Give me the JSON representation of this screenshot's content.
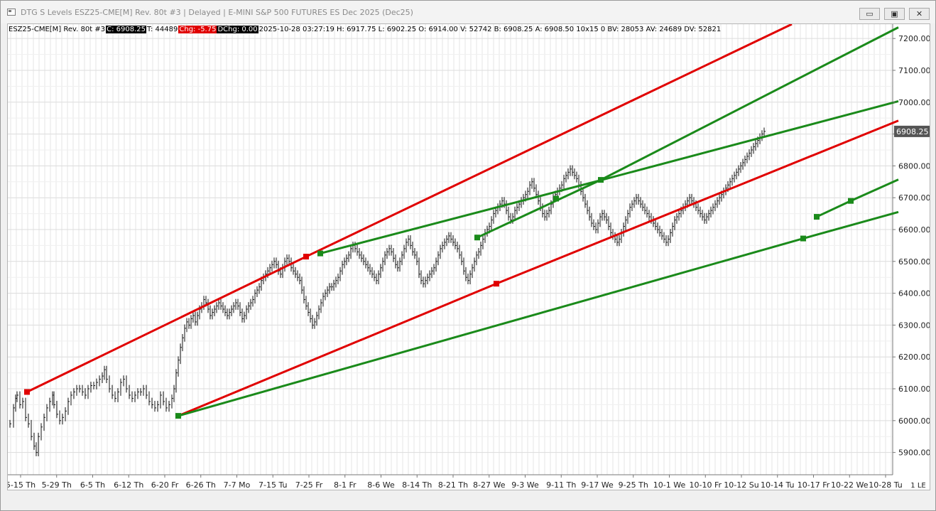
{
  "window": {
    "title": "DTG S Levels ESZ25-CME[M]  Rev. 80t #3 | Delayed | E-MINI S&P 500 FUTURES ES Dec 2025 (Dec25)",
    "min_label": "▭",
    "max_label": "▣",
    "close_label": "✕"
  },
  "infobar": {
    "symbol": "ESZ25-CME[M]  Rev. 80t #3",
    "close": "C: 6908.25",
    "ticks": "T: 44489",
    "chg": "Chg: -5.75",
    "dchg": "DChg: 0.00",
    "details": "2025-10-28 03:27:19 H: 6917.75 L: 6902.25 O: 6914.00 V: 52742 B: 6908.25 A: 6908.50 10x15 0 BV: 28053 AV: 24689 DV: 52821"
  },
  "status_box": "1 LE",
  "chart_data": {
    "type": "line",
    "ylim": [
      5830,
      7245
    ],
    "y_ticks": [
      "5900.00",
      "6000.00",
      "6100.00",
      "6200.00",
      "6300.00",
      "6400.00",
      "6500.00",
      "6600.00",
      "6700.00",
      "6800.00",
      "6900.00",
      "7000.00",
      "7100.00",
      "7200.00"
    ],
    "last_price_label": "6908.25",
    "last_price": 6908.25,
    "x_ticks": [
      "5-15 Th",
      "5-29 Th",
      "6-5 Th",
      "6-12 Th",
      "6-20 Fr",
      "6-26 Th",
      "7-7 Mo",
      "7-15 Tu",
      "7-25 Fr",
      "8-1 Fr",
      "8-6 We",
      "8-14 Th",
      "8-21 Th",
      "8-27 We",
      "9-3 We",
      "9-11 Th",
      "9-17 We",
      "9-25 Th",
      "10-1 We",
      "10-10 Fr",
      "10-12 Su",
      "10-14 Tu",
      "10-17 Fr",
      "10-22 We",
      "10-28 Tu"
    ],
    "price_series": [
      [
        0,
        5990
      ],
      [
        5,
        6040
      ],
      [
        8,
        6070
      ],
      [
        10,
        6080
      ],
      [
        14,
        6050
      ],
      [
        18,
        6060
      ],
      [
        22,
        6010
      ],
      [
        26,
        5990
      ],
      [
        30,
        5950
      ],
      [
        34,
        5920
      ],
      [
        37,
        5900
      ],
      [
        40,
        5950
      ],
      [
        44,
        5980
      ],
      [
        48,
        6010
      ],
      [
        52,
        6040
      ],
      [
        56,
        6060
      ],
      [
        60,
        6080
      ],
      [
        62,
        6050
      ],
      [
        66,
        6020
      ],
      [
        70,
        6000
      ],
      [
        74,
        6010
      ],
      [
        78,
        6030
      ],
      [
        82,
        6060
      ],
      [
        86,
        6080
      ],
      [
        90,
        6090
      ],
      [
        94,
        6100
      ],
      [
        98,
        6100
      ],
      [
        102,
        6090
      ],
      [
        106,
        6080
      ],
      [
        110,
        6100
      ],
      [
        114,
        6110
      ],
      [
        118,
        6110
      ],
      [
        122,
        6120
      ],
      [
        126,
        6130
      ],
      [
        130,
        6140
      ],
      [
        133,
        6160
      ],
      [
        136,
        6130
      ],
      [
        140,
        6100
      ],
      [
        144,
        6080
      ],
      [
        148,
        6070
      ],
      [
        152,
        6090
      ],
      [
        156,
        6120
      ],
      [
        160,
        6130
      ],
      [
        164,
        6100
      ],
      [
        168,
        6080
      ],
      [
        172,
        6070
      ],
      [
        176,
        6080
      ],
      [
        180,
        6090
      ],
      [
        184,
        6090
      ],
      [
        188,
        6100
      ],
      [
        192,
        6080
      ],
      [
        196,
        6060
      ],
      [
        200,
        6050
      ],
      [
        204,
        6040
      ],
      [
        208,
        6050
      ],
      [
        212,
        6080
      ],
      [
        216,
        6060
      ],
      [
        220,
        6040
      ],
      [
        224,
        6050
      ],
      [
        228,
        6070
      ],
      [
        231,
        6100
      ],
      [
        234,
        6150
      ],
      [
        237,
        6190
      ],
      [
        240,
        6230
      ],
      [
        243,
        6260
      ],
      [
        246,
        6290
      ],
      [
        249,
        6310
      ],
      [
        252,
        6300
      ],
      [
        255,
        6320
      ],
      [
        258,
        6330
      ],
      [
        261,
        6310
      ],
      [
        264,
        6330
      ],
      [
        267,
        6350
      ],
      [
        270,
        6360
      ],
      [
        273,
        6380
      ],
      [
        276,
        6370
      ],
      [
        279,
        6350
      ],
      [
        282,
        6330
      ],
      [
        285,
        6340
      ],
      [
        288,
        6350
      ],
      [
        291,
        6360
      ],
      [
        294,
        6370
      ],
      [
        297,
        6360
      ],
      [
        300,
        6350
      ],
      [
        303,
        6340
      ],
      [
        306,
        6330
      ],
      [
        309,
        6340
      ],
      [
        312,
        6350
      ],
      [
        315,
        6360
      ],
      [
        318,
        6370
      ],
      [
        321,
        6360
      ],
      [
        324,
        6340
      ],
      [
        327,
        6320
      ],
      [
        330,
        6330
      ],
      [
        333,
        6350
      ],
      [
        336,
        6360
      ],
      [
        339,
        6370
      ],
      [
        342,
        6380
      ],
      [
        345,
        6400
      ],
      [
        348,
        6410
      ],
      [
        351,
        6420
      ],
      [
        354,
        6440
      ],
      [
        357,
        6450
      ],
      [
        360,
        6460
      ],
      [
        363,
        6470
      ],
      [
        366,
        6480
      ],
      [
        369,
        6490
      ],
      [
        372,
        6500
      ],
      [
        375,
        6490
      ],
      [
        378,
        6470
      ],
      [
        381,
        6460
      ],
      [
        384,
        6480
      ],
      [
        387,
        6500
      ],
      [
        390,
        6510
      ],
      [
        393,
        6500
      ],
      [
        396,
        6480
      ],
      [
        399,
        6470
      ],
      [
        402,
        6460
      ],
      [
        405,
        6450
      ],
      [
        408,
        6440
      ],
      [
        411,
        6410
      ],
      [
        414,
        6380
      ],
      [
        417,
        6360
      ],
      [
        420,
        6340
      ],
      [
        423,
        6320
      ],
      [
        426,
        6300
      ],
      [
        429,
        6310
      ],
      [
        432,
        6330
      ],
      [
        435,
        6350
      ],
      [
        438,
        6370
      ],
      [
        441,
        6390
      ],
      [
        444,
        6400
      ],
      [
        447,
        6410
      ],
      [
        450,
        6420
      ],
      [
        453,
        6420
      ],
      [
        456,
        6430
      ],
      [
        459,
        6440
      ],
      [
        462,
        6450
      ],
      [
        465,
        6470
      ],
      [
        468,
        6490
      ],
      [
        471,
        6500
      ],
      [
        474,
        6510
      ],
      [
        477,
        6520
      ],
      [
        480,
        6540
      ],
      [
        483,
        6550
      ],
      [
        486,
        6540
      ],
      [
        489,
        6530
      ],
      [
        492,
        6520
      ],
      [
        495,
        6510
      ],
      [
        498,
        6500
      ],
      [
        501,
        6490
      ],
      [
        504,
        6480
      ],
      [
        507,
        6470
      ],
      [
        510,
        6460
      ],
      [
        513,
        6450
      ],
      [
        516,
        6440
      ],
      [
        519,
        6460
      ],
      [
        522,
        6480
      ],
      [
        525,
        6500
      ],
      [
        528,
        6520
      ],
      [
        531,
        6530
      ],
      [
        534,
        6540
      ],
      [
        537,
        6530
      ],
      [
        540,
        6510
      ],
      [
        543,
        6490
      ],
      [
        546,
        6480
      ],
      [
        549,
        6500
      ],
      [
        552,
        6520
      ],
      [
        555,
        6540
      ],
      [
        558,
        6560
      ],
      [
        561,
        6570
      ],
      [
        564,
        6550
      ],
      [
        567,
        6530
      ],
      [
        570,
        6520
      ],
      [
        573,
        6500
      ],
      [
        576,
        6460
      ],
      [
        579,
        6440
      ],
      [
        582,
        6430
      ],
      [
        585,
        6440
      ],
      [
        588,
        6450
      ],
      [
        591,
        6460
      ],
      [
        594,
        6470
      ],
      [
        597,
        6480
      ],
      [
        600,
        6500
      ],
      [
        603,
        6520
      ],
      [
        606,
        6540
      ],
      [
        609,
        6550
      ],
      [
        612,
        6560
      ],
      [
        615,
        6570
      ],
      [
        618,
        6580
      ],
      [
        621,
        6570
      ],
      [
        624,
        6560
      ],
      [
        627,
        6550
      ],
      [
        630,
        6540
      ],
      [
        633,
        6520
      ],
      [
        636,
        6500
      ],
      [
        639,
        6470
      ],
      [
        642,
        6450
      ],
      [
        645,
        6440
      ],
      [
        648,
        6460
      ],
      [
        651,
        6480
      ],
      [
        654,
        6500
      ],
      [
        657,
        6520
      ],
      [
        660,
        6530
      ],
      [
        663,
        6550
      ],
      [
        666,
        6570
      ],
      [
        669,
        6590
      ],
      [
        672,
        6600
      ],
      [
        675,
        6610
      ],
      [
        678,
        6630
      ],
      [
        681,
        6650
      ],
      [
        684,
        6660
      ],
      [
        687,
        6670
      ],
      [
        690,
        6680
      ],
      [
        693,
        6690
      ],
      [
        696,
        6680
      ],
      [
        699,
        6660
      ],
      [
        702,
        6640
      ],
      [
        705,
        6630
      ],
      [
        708,
        6640
      ],
      [
        711,
        6660
      ],
      [
        714,
        6670
      ],
      [
        717,
        6680
      ],
      [
        720,
        6690
      ],
      [
        723,
        6700
      ],
      [
        726,
        6710
      ],
      [
        729,
        6720
      ],
      [
        732,
        6740
      ],
      [
        735,
        6750
      ],
      [
        738,
        6730
      ],
      [
        741,
        6710
      ],
      [
        744,
        6690
      ],
      [
        747,
        6670
      ],
      [
        750,
        6650
      ],
      [
        753,
        6640
      ],
      [
        756,
        6650
      ],
      [
        759,
        6660
      ],
      [
        762,
        6680
      ],
      [
        765,
        6700
      ],
      [
        768,
        6710
      ],
      [
        771,
        6720
      ],
      [
        774,
        6730
      ],
      [
        777,
        6740
      ],
      [
        780,
        6760
      ],
      [
        783,
        6770
      ],
      [
        786,
        6780
      ],
      [
        789,
        6790
      ],
      [
        792,
        6780
      ],
      [
        795,
        6770
      ],
      [
        798,
        6760
      ],
      [
        801,
        6740
      ],
      [
        804,
        6720
      ],
      [
        807,
        6700
      ],
      [
        810,
        6680
      ],
      [
        813,
        6660
      ],
      [
        816,
        6640
      ],
      [
        819,
        6620
      ],
      [
        822,
        6610
      ],
      [
        825,
        6600
      ],
      [
        828,
        6620
      ],
      [
        831,
        6640
      ],
      [
        834,
        6650
      ],
      [
        837,
        6640
      ],
      [
        840,
        6630
      ],
      [
        843,
        6610
      ],
      [
        846,
        6590
      ],
      [
        849,
        6580
      ],
      [
        852,
        6570
      ],
      [
        855,
        6560
      ],
      [
        858,
        6570
      ],
      [
        861,
        6590
      ],
      [
        864,
        6610
      ],
      [
        867,
        6630
      ],
      [
        870,
        6650
      ],
      [
        873,
        6670
      ],
      [
        876,
        6680
      ],
      [
        879,
        6690
      ],
      [
        882,
        6700
      ],
      [
        885,
        6690
      ],
      [
        888,
        6680
      ],
      [
        891,
        6670
      ],
      [
        894,
        6660
      ],
      [
        897,
        6650
      ],
      [
        900,
        6640
      ],
      [
        903,
        6630
      ],
      [
        906,
        6620
      ],
      [
        909,
        6610
      ],
      [
        912,
        6600
      ],
      [
        915,
        6590
      ],
      [
        918,
        6580
      ],
      [
        921,
        6570
      ],
      [
        924,
        6560
      ],
      [
        927,
        6570
      ],
      [
        930,
        6590
      ],
      [
        933,
        6610
      ],
      [
        936,
        6630
      ],
      [
        939,
        6640
      ],
      [
        942,
        6650
      ],
      [
        945,
        6660
      ],
      [
        948,
        6670
      ],
      [
        951,
        6680
      ],
      [
        954,
        6690
      ],
      [
        957,
        6700
      ],
      [
        960,
        6690
      ],
      [
        963,
        6680
      ],
      [
        966,
        6670
      ],
      [
        969,
        6660
      ],
      [
        972,
        6650
      ],
      [
        975,
        6640
      ],
      [
        978,
        6630
      ],
      [
        981,
        6640
      ],
      [
        984,
        6650
      ],
      [
        987,
        6660
      ],
      [
        990,
        6670
      ],
      [
        993,
        6680
      ],
      [
        996,
        6690
      ],
      [
        999,
        6700
      ],
      [
        1002,
        6710
      ],
      [
        1005,
        6720
      ],
      [
        1008,
        6730
      ],
      [
        1011,
        6740
      ],
      [
        1014,
        6750
      ],
      [
        1017,
        6760
      ],
      [
        1020,
        6770
      ],
      [
        1023,
        6780
      ],
      [
        1026,
        6790
      ],
      [
        1029,
        6800
      ],
      [
        1032,
        6810
      ],
      [
        1035,
        6820
      ],
      [
        1038,
        6830
      ],
      [
        1041,
        6840
      ],
      [
        1044,
        6850
      ],
      [
        1047,
        6860
      ],
      [
        1050,
        6870
      ],
      [
        1053,
        6880
      ],
      [
        1056,
        6890
      ],
      [
        1059,
        6900
      ],
      [
        1062,
        6908.25
      ]
    ],
    "channel_lines": [
      {
        "color": "#e00000",
        "points": [
          [
            27,
            6090
          ],
          [
            420,
            6515
          ],
          [
            1104,
            7245
          ]
        ]
      },
      {
        "color": "#e00000",
        "points": [
          [
            240,
            6015
          ],
          [
            688,
            6430
          ],
          [
            1254,
            6942
          ]
        ]
      },
      {
        "color": "#1a8a1a",
        "points": [
          [
            240,
            6015
          ],
          [
            1120,
            6572
          ],
          [
            1254,
            6655
          ]
        ]
      },
      {
        "color": "#1a8a1a",
        "points": [
          [
            440,
            6525
          ],
          [
            835,
            6755
          ],
          [
            1254,
            7003
          ]
        ]
      },
      {
        "color": "#1a8a1a",
        "points": [
          [
            661,
            6575
          ],
          [
            835,
            6756
          ],
          [
            1254,
            7235
          ]
        ]
      },
      {
        "color": "#1a8a1a",
        "points": [
          [
            1139,
            6640
          ],
          [
            1187,
            6690
          ],
          [
            1254,
            6757
          ]
        ]
      }
    ],
    "pivots": [
      {
        "x": 27,
        "y": 6090,
        "color": "#e00000"
      },
      {
        "x": 420,
        "y": 6515,
        "color": "#e00000"
      },
      {
        "x": 688,
        "y": 6430,
        "color": "#e00000"
      },
      {
        "x": 240,
        "y": 6015,
        "color": "#1a8a1a"
      },
      {
        "x": 440,
        "y": 6525,
        "color": "#1a8a1a"
      },
      {
        "x": 661,
        "y": 6575,
        "color": "#1a8a1a"
      },
      {
        "x": 772,
        "y": 6697,
        "color": "#1a8a1a"
      },
      {
        "x": 835,
        "y": 6756,
        "color": "#1a8a1a"
      },
      {
        "x": 1120,
        "y": 6572,
        "color": "#1a8a1a"
      },
      {
        "x": 1139,
        "y": 6640,
        "color": "#1a8a1a"
      },
      {
        "x": 1187,
        "y": 6690,
        "color": "#1a8a1a"
      }
    ]
  }
}
